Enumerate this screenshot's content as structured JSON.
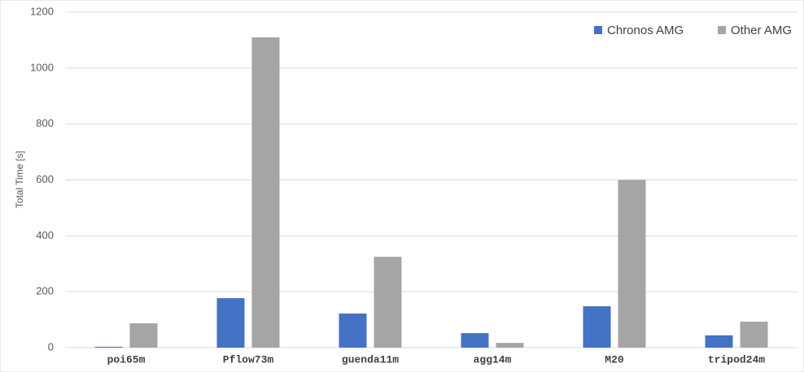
{
  "chart_data": {
    "type": "bar",
    "y_label": "Total Time [s]",
    "categories": [
      "poi65m",
      "Pflow73m",
      "guenda11m",
      "agg14m",
      "M20",
      "tripod24m"
    ],
    "series": [
      {
        "name": "Chronos AMG",
        "color": "#4472c4",
        "values": [
          3,
          177,
          122,
          52,
          148,
          44
        ]
      },
      {
        "name": "Other AMG",
        "color": "#a5a5a5",
        "values": [
          87,
          1110,
          325,
          17,
          600,
          93
        ]
      }
    ],
    "ylim": [
      0,
      1200
    ],
    "yticks": [
      0,
      200,
      400,
      600,
      800,
      1000,
      1200
    ],
    "grid": true,
    "legend": "top-right"
  }
}
